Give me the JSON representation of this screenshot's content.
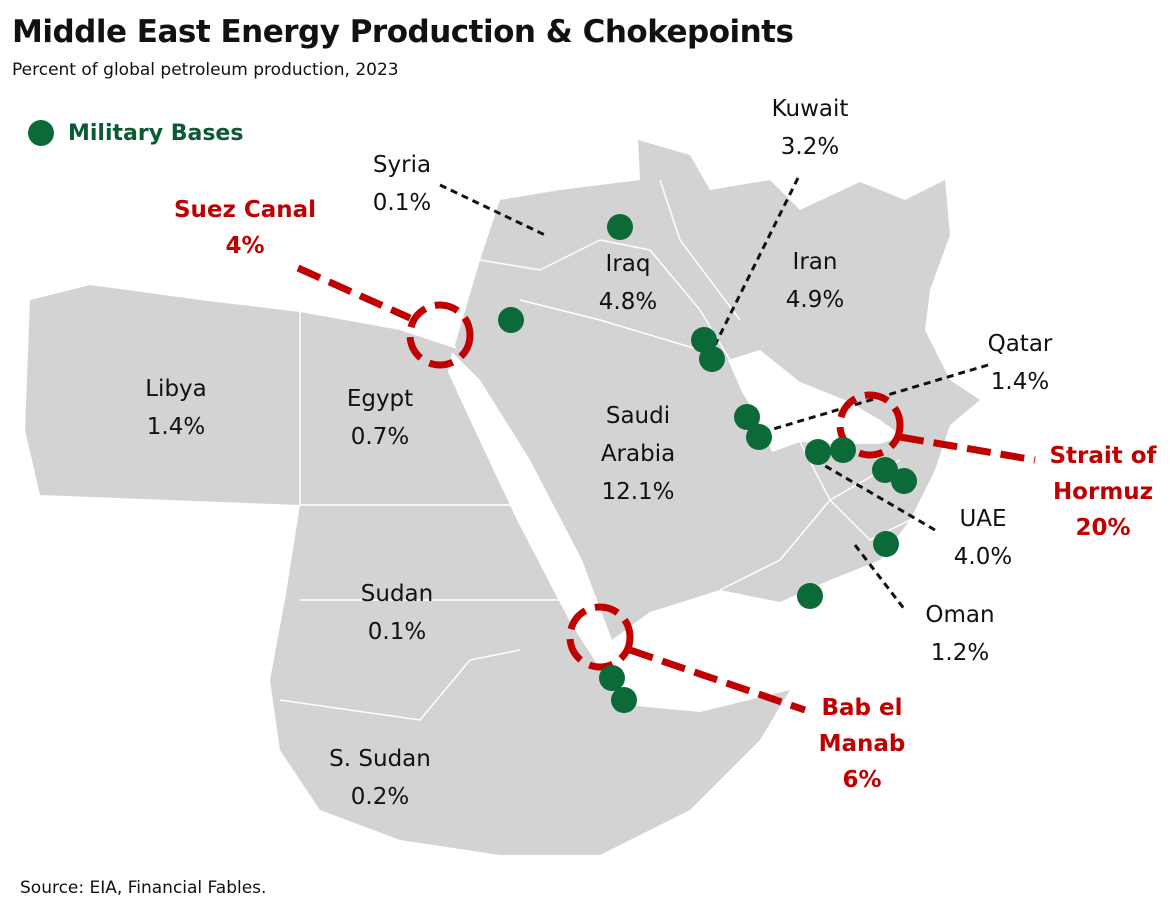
{
  "header": {
    "title": "Middle East Energy Production & Chokepoints",
    "subtitle": "Percent of global petroleum production, 2023"
  },
  "legend": {
    "label": "Military Bases"
  },
  "countries": [
    {
      "name": "Syria",
      "value": "0.1%"
    },
    {
      "name": "Iraq",
      "value": "4.8%"
    },
    {
      "name": "Kuwait",
      "value": "3.2%"
    },
    {
      "name": "Iran",
      "value": "4.9%"
    },
    {
      "name": "Qatar",
      "value": "1.4%"
    },
    {
      "name": "Libya",
      "value": "1.4%"
    },
    {
      "name": "Egypt",
      "value": "0.7%"
    },
    {
      "name": "Saudi Arabia",
      "value": "12.1%"
    },
    {
      "name": "UAE",
      "value": "4.0%"
    },
    {
      "name": "Oman",
      "value": "1.2%"
    },
    {
      "name": "Sudan",
      "value": "0.1%"
    },
    {
      "name": "S. Sudan",
      "value": "0.2%"
    }
  ],
  "chokepoints": [
    {
      "name": "Suez Canal",
      "value": "4%"
    },
    {
      "name": "Strait of Hormuz",
      "value": "20%"
    },
    {
      "name": "Bab el Manab",
      "value": "6%"
    }
  ],
  "footer": {
    "source": "Source: EIA, Financial Fables."
  }
}
